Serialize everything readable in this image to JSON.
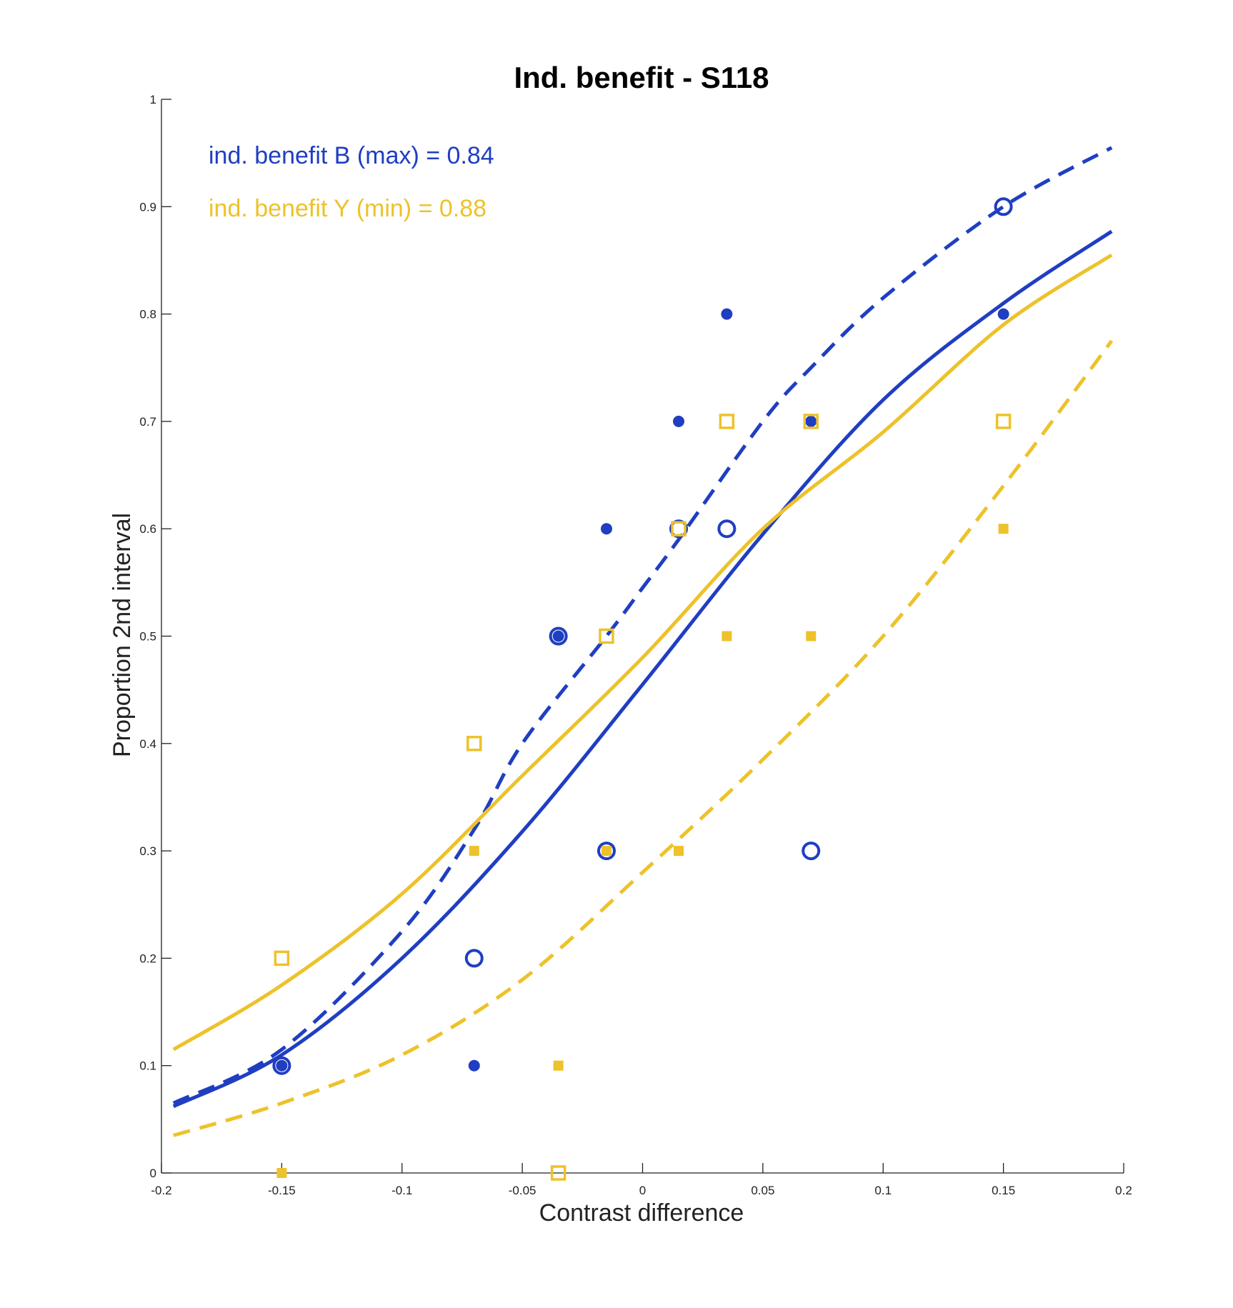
{
  "chart_data": {
    "type": "scatter",
    "title": "Ind. benefit - S118",
    "xlabel": "Contrast difference",
    "ylabel": "Proportion 2nd interval",
    "xlim": [
      -0.2,
      0.2
    ],
    "ylim": [
      0,
      1
    ],
    "xticks": [
      "-0.2",
      "-0.15",
      "-0.1",
      "-0.05",
      "0",
      "0.05",
      "0.1",
      "0.15",
      "0.2"
    ],
    "yticks": [
      "0",
      "0.1",
      "0.2",
      "0.3",
      "0.4",
      "0.5",
      "0.6",
      "0.7",
      "0.8",
      "0.9",
      "1"
    ],
    "grid": false,
    "annotations": [
      {
        "text": "ind. benefit B (max) = 0.84",
        "color": "#1f3ec2"
      },
      {
        "text": "ind. benefit Y (min) = 0.88",
        "color": "#edc22a"
      }
    ],
    "colors": {
      "blue": "#1f3ec2",
      "yellow": "#edc22a"
    },
    "scatter_series": [
      {
        "color": "#1f3ec2",
        "marker": "open-circle",
        "x": [
          -0.15,
          -0.07,
          -0.035,
          -0.015,
          0.015,
          0.035,
          0.07,
          0.15
        ],
        "y": [
          0.1,
          0.2,
          0.5,
          0.3,
          0.6,
          0.6,
          0.3,
          0.9
        ]
      },
      {
        "color": "#1f3ec2",
        "marker": "filled-circle",
        "x": [
          -0.15,
          -0.07,
          -0.035,
          -0.015,
          0.015,
          0.035,
          0.07,
          0.15
        ],
        "y": [
          0.1,
          0.1,
          0.5,
          0.6,
          0.7,
          0.8,
          0.7,
          0.8
        ]
      },
      {
        "color": "#edc22a",
        "marker": "open-square",
        "x": [
          -0.15,
          -0.07,
          -0.035,
          -0.015,
          0.015,
          0.035,
          0.07,
          0.15
        ],
        "y": [
          0.2,
          0.4,
          0.0,
          0.5,
          0.6,
          0.7,
          0.7,
          0.7
        ]
      },
      {
        "color": "#edc22a",
        "marker": "filled-square",
        "x": [
          -0.15,
          -0.07,
          -0.035,
          -0.015,
          0.015,
          0.035,
          0.07,
          0.15
        ],
        "y": [
          0.0,
          0.3,
          0.1,
          0.3,
          0.3,
          0.5,
          0.5,
          0.6
        ]
      }
    ],
    "fit_curves": [
      {
        "color": "#1f3ec2",
        "style": "dashed",
        "x": [
          -0.195,
          -0.15,
          -0.1,
          -0.07,
          -0.05,
          -0.015,
          0.0,
          0.015,
          0.05,
          0.07,
          0.1,
          0.15,
          0.195
        ],
        "y": [
          0.065,
          0.115,
          0.225,
          0.32,
          0.4,
          0.5,
          0.545,
          0.59,
          0.7,
          0.75,
          0.815,
          0.9,
          0.955
        ]
      },
      {
        "color": "#1f3ec2",
        "style": "solid",
        "x": [
          -0.195,
          -0.15,
          -0.1,
          -0.05,
          0.0,
          0.05,
          0.1,
          0.15,
          0.195
        ],
        "y": [
          0.062,
          0.11,
          0.2,
          0.318,
          0.455,
          0.595,
          0.72,
          0.81,
          0.877
        ]
      },
      {
        "color": "#edc22a",
        "style": "solid",
        "x": [
          -0.195,
          -0.15,
          -0.1,
          -0.05,
          0.0,
          0.05,
          0.1,
          0.15,
          0.195
        ],
        "y": [
          0.115,
          0.175,
          0.26,
          0.37,
          0.48,
          0.6,
          0.69,
          0.79,
          0.855
        ]
      },
      {
        "color": "#edc22a",
        "style": "dashed",
        "x": [
          -0.195,
          -0.15,
          -0.1,
          -0.05,
          0.0,
          0.05,
          0.1,
          0.15,
          0.195
        ],
        "y": [
          0.035,
          0.065,
          0.11,
          0.18,
          0.28,
          0.385,
          0.5,
          0.64,
          0.775
        ]
      }
    ]
  }
}
